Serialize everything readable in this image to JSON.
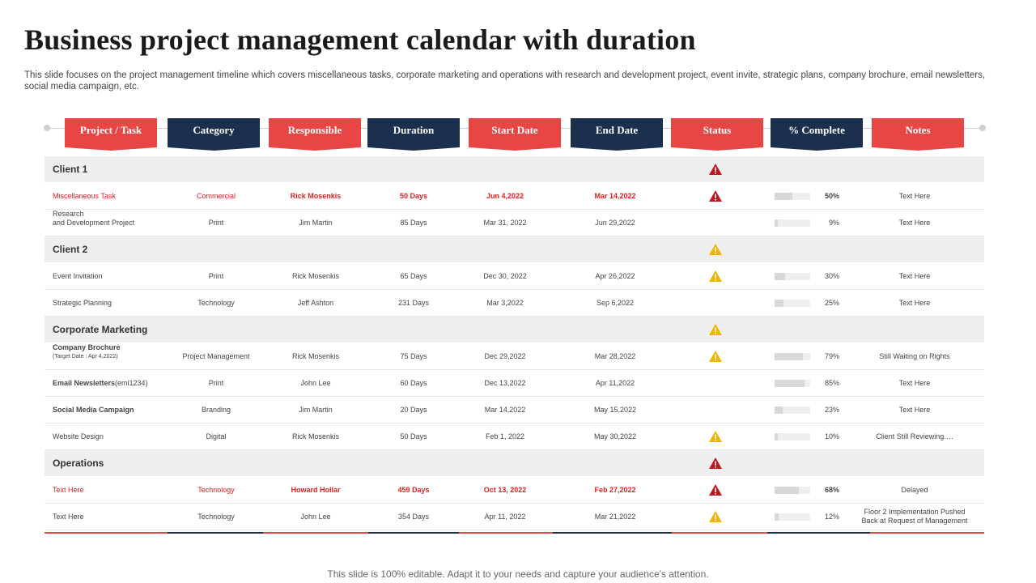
{
  "title": "Business project management calendar with duration",
  "subtitle": "This slide focuses on the project management timeline which covers miscellaneous tasks, corporate marketing and operations with research and development project, event invite,  strategic plans, company brochure, email newsletters, social media campaign, etc.",
  "colors": {
    "red": "#e84545",
    "navy": "#1b2f4f",
    "warn_red": "#c0161e",
    "warn_yellow": "#f0b400"
  },
  "headers": [
    "Project / Task",
    "Category",
    "Responsible",
    "Duration",
    "Start Date",
    "End Date",
    "Status",
    "% Complete",
    "Notes"
  ],
  "groups": [
    {
      "label": "Client 1",
      "status_icon": "warning-red-icon",
      "rows": [
        {
          "task": "Miscellaneous Task",
          "category": "Commercial",
          "responsible": "Rick Mosenkis",
          "duration": "50 Days",
          "start": "Jun 4,2022",
          "end": "Mar 14,2022",
          "status_icon": "warning-red-icon",
          "complete": 50,
          "complete_label": "50%",
          "notes": "Text Here",
          "highlight": true
        },
        {
          "task": "Research",
          "task_line2": "and Development Project",
          "category": "Print",
          "responsible": "Jim Martin",
          "duration": "85 Days",
          "start": "Mar 31, 2022",
          "end": "Jun 29,2022",
          "status_icon": "",
          "complete": 9,
          "complete_label": "9%",
          "notes": "Text Here"
        }
      ]
    },
    {
      "label": "Client 2",
      "status_icon": "warning-yellow-icon",
      "rows": [
        {
          "task": "Event Invitation",
          "category": "Print",
          "responsible": "Rick Mosenkis",
          "duration": "65 Days",
          "start": "Dec 30,  2022",
          "end": "Apr 26,2022",
          "status_icon": "warning-yellow-icon",
          "complete": 30,
          "complete_label": "30%",
          "notes": "Text Here"
        },
        {
          "task": "Strategic Planning",
          "category": "Technology",
          "responsible": "Jeff  Ashton",
          "duration": "231 Days",
          "start": "Mar 3,2022",
          "end": "Sep 6,2022",
          "status_icon": "",
          "complete": 25,
          "complete_label": "25%",
          "notes": "Text Here"
        }
      ]
    },
    {
      "label": "Corporate Marketing",
      "status_icon": "warning-yellow-icon",
      "rows": [
        {
          "task": "Company Brochure",
          "task_line2": "(Target Date  : Apr 4,2022)",
          "task_bold": true,
          "category": "Project Management",
          "responsible": "Rick Mosenkis",
          "duration": "75 Days",
          "start": "Dec 29,2022",
          "end": "Mar 28,2022",
          "status_icon": "warning-yellow-icon",
          "complete": 79,
          "complete_label": "79%",
          "notes": "Still Waiting on Rights"
        },
        {
          "task": "Email Newsletters",
          "task_suffix": "(emi1234)",
          "task_bold": true,
          "category": "Print",
          "responsible": "John Lee",
          "duration": "60 Days",
          "start": "Dec 13,2022",
          "end": "Apr 11,2022",
          "status_icon": "",
          "complete": 85,
          "complete_label": "85%",
          "notes": "Text Here"
        },
        {
          "task": "Social Media Campaign",
          "task_bold": true,
          "category": "Branding",
          "responsible": "Jim Martin",
          "duration": "20 Days",
          "start": "Mar 14,2022",
          "end": "May 15,2022",
          "status_icon": "",
          "complete": 23,
          "complete_label": "23%",
          "notes": "Text Here"
        },
        {
          "task": "Website Design",
          "category": "Digital",
          "responsible": "Rick Mosenkis",
          "duration": "50 Days",
          "start": "Feb 1, 2022",
          "end": "May 30,2022",
          "status_icon": "warning-yellow-icon",
          "complete": 10,
          "complete_label": "10%",
          "notes": "Client Still Reviewing…."
        }
      ]
    },
    {
      "label": "Operations",
      "status_icon": "warning-red-icon",
      "rows": [
        {
          "task": "Text Here",
          "category": "Technology",
          "responsible": "Howard  Hollar",
          "duration": "459 Days",
          "start": "Oct 13,  2022",
          "end": "Feb 27,2022",
          "status_icon": "warning-red-icon",
          "complete": 68,
          "complete_label": "68%",
          "notes": "Delayed",
          "highlight": true
        },
        {
          "task": "Text Here",
          "category": "Technology",
          "responsible": "John Lee",
          "duration": "354 Days",
          "start": "Apr 11, 2022",
          "end": "Mar 21,2022",
          "status_icon": "warning-yellow-icon",
          "complete": 12,
          "complete_label": "12%",
          "notes": "Floor 2 Implementation Pushed",
          "notes_line2": "Back at Request of Management"
        }
      ]
    }
  ],
  "footer": "This slide is 100% editable. Adapt it to your needs and capture your audience's attention."
}
